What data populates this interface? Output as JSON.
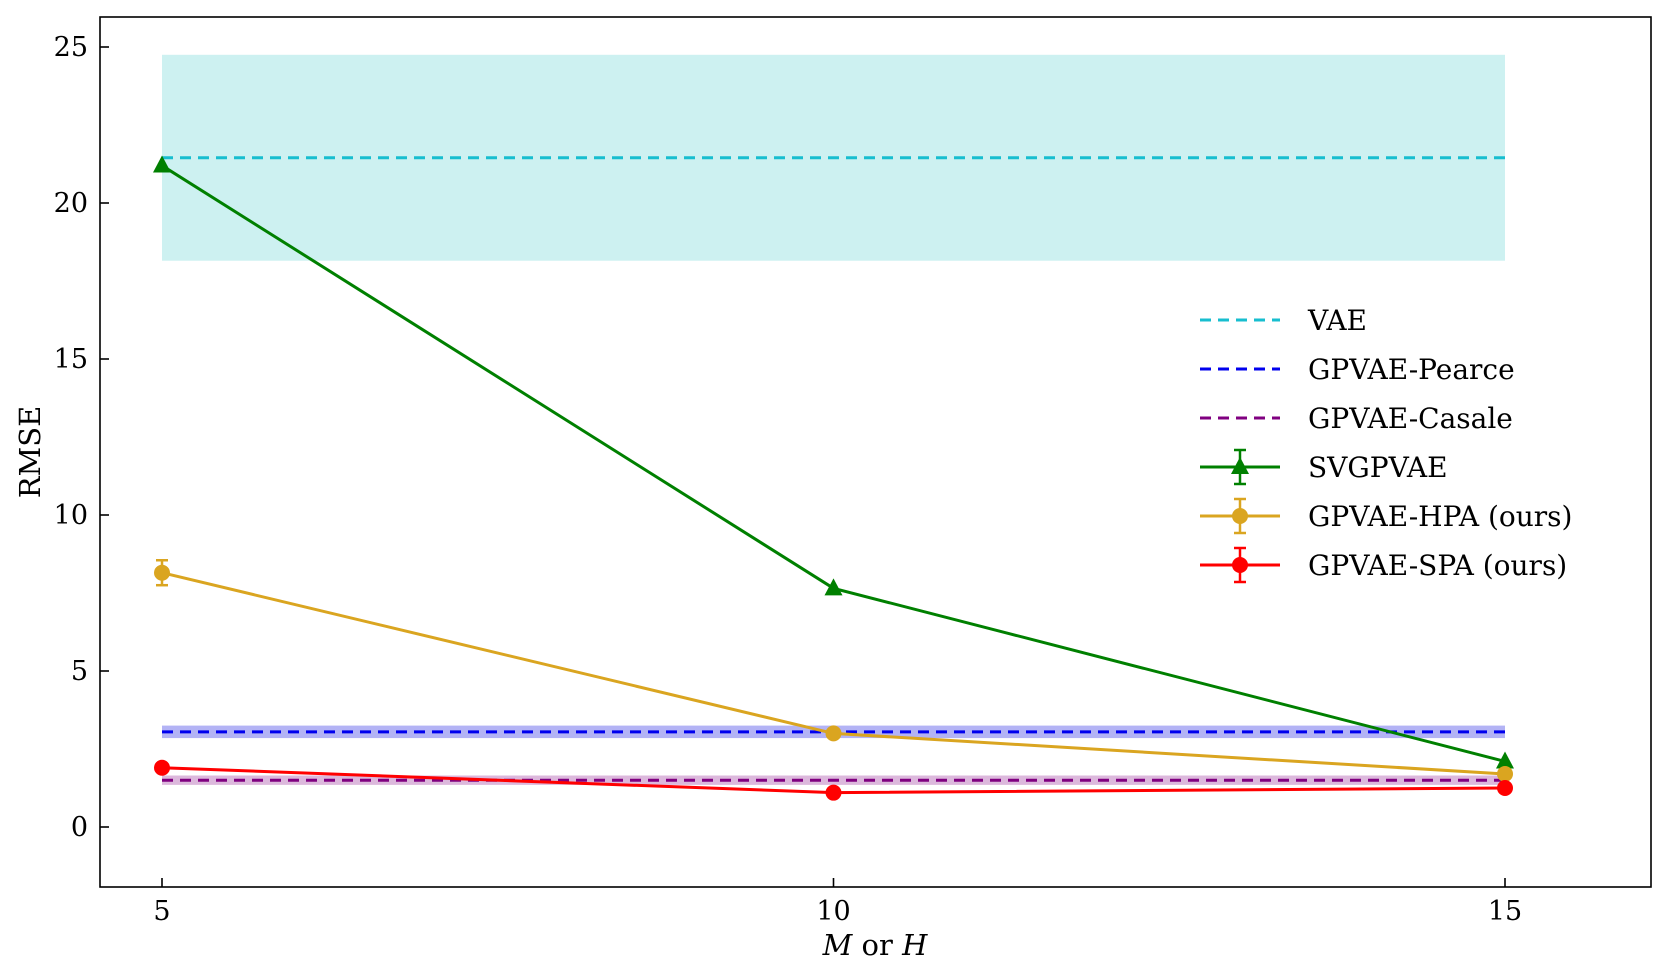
{
  "chart_data": {
    "type": "line",
    "title": "",
    "xlabel": "M or H",
    "xlabel_parts": [
      "M",
      " or ",
      "H"
    ],
    "ylabel": "RMSE",
    "xlim": [
      4,
      16
    ],
    "ylim": [
      0,
      26
    ],
    "xticks": [
      5,
      10,
      15
    ],
    "yticks": [
      0,
      5,
      10,
      15,
      20,
      25
    ],
    "grid": false,
    "legend_position": "right",
    "x": [
      5,
      10,
      15
    ],
    "baselines": [
      {
        "name": "VAE",
        "value": 21.45,
        "band": [
          18.15,
          24.75
        ],
        "color": "#17becf",
        "band_color": "#cdf1f1"
      },
      {
        "name": "GPVAE-Pearce",
        "value": 3.05,
        "band": [
          2.85,
          3.25
        ],
        "color": "#0000ee",
        "band_color": "#b3b3f5"
      },
      {
        "name": "GPVAE-Casale",
        "value": 1.5,
        "band": [
          1.35,
          1.65
        ],
        "color": "#800080",
        "band_color": "#dcb8dc"
      }
    ],
    "series": [
      {
        "name": "SVGPVAE",
        "values": [
          21.2,
          7.65,
          2.1
        ],
        "err": [
          0.1,
          0.1,
          0.1
        ],
        "color": "#008000",
        "marker": "triangle"
      },
      {
        "name": "GPVAE-HPA (ours)",
        "values": [
          8.15,
          3.0,
          1.7
        ],
        "err": [
          0.4,
          0.1,
          0.1
        ],
        "color": "#daa520",
        "marker": "circle"
      },
      {
        "name": "GPVAE-SPA (ours)",
        "values": [
          1.9,
          1.1,
          1.25
        ],
        "err": [
          0.05,
          0.05,
          0.05
        ],
        "color": "#ff0000",
        "marker": "circle"
      }
    ]
  }
}
